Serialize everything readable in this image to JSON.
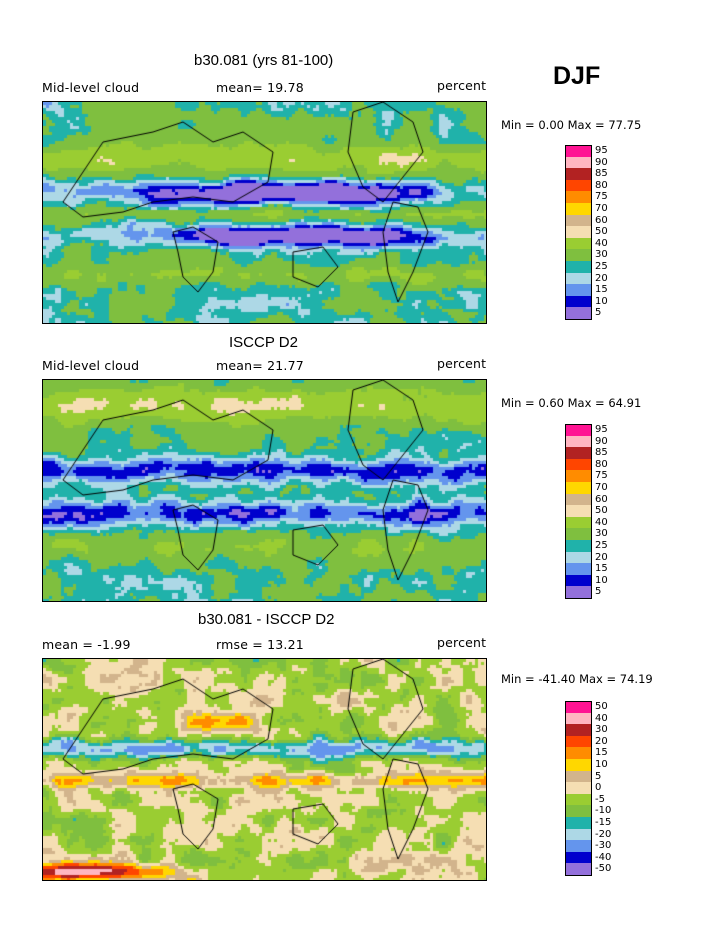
{
  "season": "DJF",
  "panels": [
    {
      "title": "b30.081 (yrs 81-100)",
      "left_label": "Mid-level cloud",
      "center_label": "mean=  19.78",
      "right_label": "percent",
      "minmax": "Min =   0.00 Max =  77.75",
      "legend": {
        "labels": [
          "95",
          "90",
          "85",
          "80",
          "75",
          "70",
          "60",
          "50",
          "40",
          "30",
          "25",
          "20",
          "15",
          "10",
          "5"
        ],
        "colors": [
          "#ff1493",
          "#ffb6c1",
          "#b22222",
          "#ff4500",
          "#ff8c00",
          "#ffd700",
          "#d2b48c",
          "#f5deb3",
          "#9acd32",
          "#7fbf3f",
          "#20b2aa",
          "#add8e6",
          "#6495ed",
          "#0000cd",
          "#9370db"
        ]
      },
      "map": "model"
    },
    {
      "title": "ISCCP D2",
      "left_label": "Mid-level cloud",
      "center_label": "mean=  21.77",
      "right_label": "percent",
      "minmax": "Min =   0.60 Max =  64.91",
      "legend": {
        "labels": [
          "95",
          "90",
          "85",
          "80",
          "75",
          "70",
          "60",
          "50",
          "40",
          "30",
          "25",
          "20",
          "15",
          "10",
          "5"
        ],
        "colors": [
          "#ff1493",
          "#ffb6c1",
          "#b22222",
          "#ff4500",
          "#ff8c00",
          "#ffd700",
          "#d2b48c",
          "#f5deb3",
          "#9acd32",
          "#7fbf3f",
          "#20b2aa",
          "#add8e6",
          "#6495ed",
          "#0000cd",
          "#9370db"
        ]
      },
      "map": "obs"
    },
    {
      "title": "b30.081 - ISCCP D2",
      "left_label": "mean =  -1.99",
      "center_label": "rmse =  13.21",
      "right_label": "percent",
      "minmax": "Min = -41.40 Max =  74.19",
      "legend": {
        "labels": [
          "50",
          "40",
          "30",
          "20",
          "15",
          "10",
          "5",
          "0",
          "-5",
          "-10",
          "-15",
          "-20",
          "-30",
          "-40",
          "-50"
        ],
        "colors": [
          "#ff1493",
          "#ffb6c1",
          "#b22222",
          "#ff4500",
          "#ff8c00",
          "#ffd700",
          "#d2b48c",
          "#f5deb3",
          "#9acd32",
          "#7fbf3f",
          "#20b2aa",
          "#add8e6",
          "#6495ed",
          "#0000cd",
          "#9370db"
        ]
      },
      "map": "diff"
    }
  ],
  "chart_data": [
    {
      "type": "heatmap",
      "title": "b30.081 (yrs 81-100)",
      "variable": "Mid-level cloud",
      "units": "percent",
      "mean": 19.78,
      "min": 0.0,
      "max": 77.75,
      "levels": [
        5,
        10,
        15,
        20,
        25,
        30,
        40,
        50,
        60,
        70,
        75,
        80,
        85,
        90,
        95
      ]
    },
    {
      "type": "heatmap",
      "title": "ISCCP D2",
      "variable": "Mid-level cloud",
      "units": "percent",
      "mean": 21.77,
      "min": 0.6,
      "max": 64.91,
      "levels": [
        5,
        10,
        15,
        20,
        25,
        30,
        40,
        50,
        60,
        70,
        75,
        80,
        85,
        90,
        95
      ]
    },
    {
      "type": "heatmap",
      "title": "b30.081 - ISCCP D2",
      "units": "percent",
      "mean": -1.99,
      "rmse": 13.21,
      "min": -41.4,
      "max": 74.19,
      "levels": [
        -50,
        -40,
        -30,
        -20,
        -15,
        -10,
        -5,
        0,
        5,
        10,
        15,
        20,
        30,
        40,
        50
      ]
    }
  ]
}
